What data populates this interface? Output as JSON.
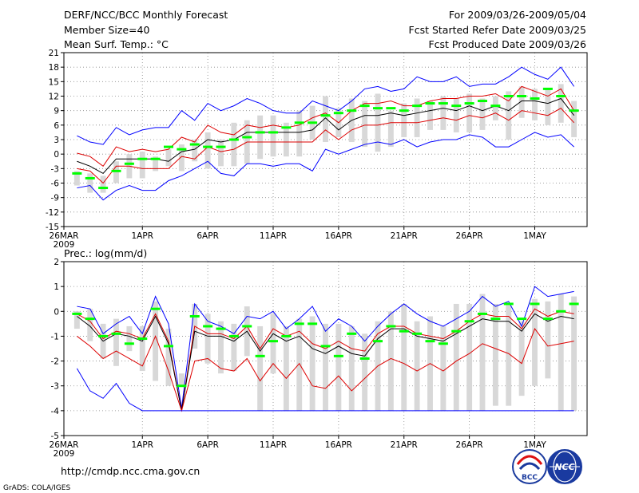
{
  "header": {
    "title": "DERF/NCC/BCC Monthly Forecast",
    "member_size": "Member Size=40",
    "variable": "Mean Surf. Temp.: °C",
    "period": "For 2009/03/26-2009/05/04",
    "start_date": "Fcst Started Refer Date 2009/03/25",
    "produced_date": "Fcst Produced Date 2009/03/26"
  },
  "footer": {
    "url": "http://cmdp.ncc.cma.gov.cn",
    "credit": "GrADS: COLA/IGES",
    "logo_bcc": "BCC",
    "logo_ncc": "NCC"
  },
  "colors": {
    "envelope": "#0000ff",
    "spread": "#dd0000",
    "mean": "#000000",
    "bar": "#d8d8d8",
    "marker": "#00ff00",
    "grid": "#888888"
  },
  "chart_data": [
    {
      "type": "line",
      "title": "Mean Surf. Temp.: °C",
      "x_labels": [
        "26MAR",
        "1APR",
        "6APR",
        "11APR",
        "16APR",
        "21APR",
        "26APR",
        "1MAY"
      ],
      "x_year_label": "2009",
      "x_label_days": [
        0,
        6,
        11,
        16,
        21,
        26,
        31,
        36
      ],
      "x_range": [
        0,
        40
      ],
      "ylim": [
        -15,
        21
      ],
      "yticks": [
        "21",
        "18",
        "15",
        "12",
        "9",
        "6",
        "3",
        "0",
        "-3",
        "-6",
        "-9",
        "-12",
        "-15"
      ],
      "grid": true,
      "days": [
        1,
        2,
        3,
        4,
        5,
        6,
        7,
        8,
        9,
        10,
        11,
        12,
        13,
        14,
        15,
        16,
        17,
        18,
        19,
        20,
        21,
        22,
        23,
        24,
        25,
        26,
        27,
        28,
        29,
        30,
        31,
        32,
        33,
        34,
        35,
        36,
        37,
        38,
        39
      ],
      "series": [
        {
          "name": "max",
          "values": [
            3.8,
            2.5,
            2.0,
            5.5,
            4.0,
            5.0,
            5.5,
            5.5,
            9.0,
            7.0,
            10.5,
            9.0,
            10.0,
            11.5,
            10.5,
            9.0,
            8.5,
            8.5,
            11.0,
            10.0,
            9.0,
            11.0,
            13.5,
            14.0,
            13.0,
            13.5,
            16.0,
            15.0,
            15.0,
            16.0,
            14.0,
            14.5,
            14.5,
            16.0,
            18.0,
            16.5,
            15.5,
            18.0,
            14.0
          ]
        },
        {
          "name": "upper",
          "values": [
            0.2,
            -0.5,
            -2.5,
            1.5,
            0.5,
            1.0,
            0.5,
            1.0,
            3.5,
            2.5,
            6.0,
            4.5,
            4.0,
            6.0,
            5.5,
            6.0,
            5.5,
            6.0,
            7.5,
            8.5,
            6.5,
            9.0,
            10.5,
            10.5,
            11.0,
            10.0,
            10.0,
            11.0,
            11.5,
            11.5,
            12.0,
            12.0,
            12.5,
            11.0,
            14.0,
            13.0,
            12.0,
            13.5,
            9.0
          ]
        },
        {
          "name": "mean",
          "values": [
            -1.5,
            -2.5,
            -4.0,
            -1.0,
            -1.0,
            -1.0,
            -1.0,
            -1.5,
            0.5,
            1.0,
            3.0,
            2.5,
            3.0,
            4.5,
            4.5,
            4.5,
            4.5,
            4.5,
            5.0,
            7.5,
            5.0,
            7.0,
            8.0,
            8.0,
            8.5,
            8.0,
            8.5,
            9.0,
            9.5,
            9.0,
            10.0,
            9.0,
            10.0,
            9.0,
            11.0,
            11.0,
            10.5,
            11.5,
            8.0
          ]
        },
        {
          "name": "lower",
          "values": [
            -3.0,
            -3.5,
            -6.0,
            -2.5,
            -2.5,
            -3.0,
            -3.0,
            -3.0,
            -0.5,
            -1.0,
            1.5,
            0.5,
            1.0,
            2.5,
            2.5,
            2.5,
            2.5,
            2.5,
            2.5,
            5.0,
            3.0,
            5.0,
            6.0,
            6.0,
            6.5,
            6.5,
            6.5,
            7.0,
            7.5,
            7.0,
            8.0,
            7.5,
            8.5,
            7.0,
            9.0,
            8.5,
            8.0,
            9.5,
            6.5
          ]
        },
        {
          "name": "min",
          "values": [
            -7.0,
            -6.5,
            -9.5,
            -7.5,
            -6.5,
            -7.5,
            -7.5,
            -5.5,
            -4.5,
            -3.0,
            -1.5,
            -4.0,
            -4.5,
            -2.0,
            -2.0,
            -2.5,
            -2.0,
            -2.0,
            -3.5,
            1.0,
            0.0,
            1.0,
            2.0,
            2.5,
            2.0,
            3.0,
            1.5,
            2.5,
            3.0,
            3.0,
            4.0,
            3.5,
            1.5,
            1.5,
            3.0,
            4.5,
            3.5,
            4.0,
            1.5
          ]
        }
      ],
      "bars": {
        "name": "observed range",
        "low": [
          -6.5,
          -8.0,
          -8.0,
          -6.0,
          -5.0,
          -5.0,
          -3.5,
          -2.5,
          -3.5,
          -1.5,
          -3.0,
          -2.5,
          -2.5,
          -2.0,
          -1.0,
          -0.5,
          -0.5,
          -0.5,
          3.0,
          2.5,
          3.5,
          2.5,
          1.5,
          0.5,
          1.5,
          3.5,
          3.5,
          5.0,
          5.0,
          4.5,
          4.5,
          5.0,
          7.0,
          3.0,
          7.5,
          7.0,
          6.0,
          6.5,
          3.5
        ],
        "high": [
          -3.5,
          -4.0,
          -4.5,
          -1.5,
          0.0,
          0.5,
          -0.5,
          1.0,
          2.0,
          3.0,
          4.5,
          3.0,
          6.5,
          7.0,
          8.0,
          8.0,
          6.5,
          9.0,
          10.0,
          12.0,
          9.5,
          11.5,
          11.0,
          12.5,
          9.0,
          10.5,
          11.5,
          11.0,
          12.0,
          11.5,
          12.5,
          11.5,
          12.0,
          13.0,
          14.0,
          13.5,
          13.5,
          14.5,
          11.0
        ]
      },
      "markers": {
        "name": "climatology",
        "values": [
          -4.0,
          -5.0,
          -7.0,
          -3.5,
          -2.0,
          -1.0,
          -1.0,
          1.5,
          1.0,
          2.0,
          1.5,
          1.5,
          3.0,
          3.5,
          4.5,
          4.5,
          5.5,
          6.5,
          6.5,
          8.0,
          8.5,
          9.0,
          10.0,
          9.5,
          9.5,
          9.0,
          10.0,
          10.5,
          10.5,
          10.0,
          10.5,
          11.0,
          10.0,
          12.0,
          12.0,
          11.5,
          13.5,
          12.0,
          9.0
        ]
      }
    },
    {
      "type": "line",
      "title": "Prec.: log(mm/d)",
      "x_labels": [
        "26MAR",
        "1APR",
        "6APR",
        "11APR",
        "16APR",
        "21APR",
        "26APR",
        "1MAY"
      ],
      "x_year_label": "2009",
      "x_label_days": [
        0,
        6,
        11,
        16,
        21,
        26,
        31,
        36
      ],
      "x_range": [
        0,
        40
      ],
      "ylim": [
        -5,
        2
      ],
      "yticks": [
        "2",
        "1",
        "0",
        "-1",
        "-2",
        "-3",
        "-4",
        "-5"
      ],
      "grid": true,
      "days": [
        1,
        2,
        3,
        4,
        5,
        6,
        7,
        8,
        9,
        10,
        11,
        12,
        13,
        14,
        15,
        16,
        17,
        18,
        19,
        20,
        21,
        22,
        23,
        24,
        25,
        26,
        27,
        28,
        29,
        30,
        31,
        32,
        33,
        34,
        35,
        36,
        37,
        38,
        39
      ],
      "series": [
        {
          "name": "max",
          "values": [
            0.2,
            0.1,
            -0.9,
            -0.5,
            -0.2,
            -0.9,
            0.6,
            -0.5,
            -3.9,
            0.3,
            -0.4,
            -0.6,
            -0.9,
            -0.2,
            -0.3,
            0.0,
            -0.7,
            -0.3,
            0.2,
            -0.8,
            -0.3,
            -0.6,
            -1.2,
            -0.6,
            -0.1,
            0.3,
            -0.1,
            -0.4,
            -0.6,
            -0.3,
            0.0,
            0.6,
            0.2,
            0.4,
            -0.6,
            1.0,
            0.6,
            0.7,
            0.8
          ]
        },
        {
          "name": "upper",
          "values": [
            -0.1,
            -0.4,
            -1.1,
            -0.8,
            -0.9,
            -1.1,
            -0.1,
            -1.2,
            -4.0,
            -0.6,
            -0.9,
            -0.9,
            -1.1,
            -0.6,
            -1.5,
            -0.7,
            -1.0,
            -0.8,
            -1.3,
            -1.5,
            -1.2,
            -1.5,
            -1.6,
            -0.9,
            -0.6,
            -0.6,
            -0.9,
            -1.0,
            -1.1,
            -0.8,
            -0.4,
            -0.1,
            -0.2,
            -0.2,
            -0.7,
            0.1,
            -0.2,
            0.0,
            -0.1
          ]
        },
        {
          "name": "mean",
          "values": [
            -0.2,
            -0.6,
            -1.2,
            -0.9,
            -1.0,
            -1.2,
            -0.2,
            -1.3,
            -4.0,
            -0.8,
            -1.0,
            -1.0,
            -1.2,
            -0.8,
            -1.6,
            -0.9,
            -1.2,
            -1.0,
            -1.5,
            -1.7,
            -1.4,
            -1.7,
            -1.8,
            -1.1,
            -0.7,
            -0.7,
            -1.0,
            -1.1,
            -1.2,
            -0.9,
            -0.6,
            -0.3,
            -0.4,
            -0.4,
            -0.8,
            -0.1,
            -0.4,
            -0.2,
            -0.3
          ]
        },
        {
          "name": "lower",
          "values": [
            -1.0,
            -1.4,
            -1.9,
            -1.6,
            -1.9,
            -2.2,
            -1.0,
            -2.4,
            -4.0,
            -2.0,
            -1.9,
            -2.3,
            -2.4,
            -1.9,
            -2.8,
            -2.1,
            -2.7,
            -2.1,
            -3.0,
            -3.1,
            -2.6,
            -3.2,
            -2.7,
            -2.2,
            -1.9,
            -2.1,
            -2.4,
            -2.1,
            -2.4,
            -2.0,
            -1.7,
            -1.3,
            -1.5,
            -1.7,
            -2.1,
            -0.7,
            -1.4,
            -1.3,
            -1.2
          ]
        },
        {
          "name": "min",
          "values": [
            -2.3,
            -3.2,
            -3.5,
            -2.9,
            -3.7,
            -4.0,
            -4.0,
            -4.0,
            -4.0,
            -4.0,
            -4.0,
            -4.0,
            -4.0,
            -4.0,
            -4.0,
            -4.0,
            -4.0,
            -4.0,
            -4.0,
            -4.0,
            -4.0,
            -4.0,
            -4.0,
            -4.0,
            -4.0,
            -4.0,
            -4.0,
            -4.0,
            -4.0,
            -4.0,
            -4.0,
            -4.0,
            -4.0,
            -4.0,
            -4.0,
            -4.0,
            -4.0,
            -4.0,
            -4.0
          ]
        }
      ],
      "bars": {
        "name": "observed range",
        "low": [
          -0.7,
          -1.2,
          -1.9,
          -2.2,
          -1.6,
          -2.4,
          -2.8,
          -3.0,
          -3.0,
          -1.5,
          -2.1,
          -2.5,
          -2.4,
          -1.8,
          -4.0,
          -2.5,
          -4.0,
          -4.0,
          -4.0,
          -4.0,
          -4.0,
          -4.0,
          -4.0,
          -4.0,
          -4.0,
          -4.0,
          -4.0,
          -4.0,
          -4.0,
          -4.0,
          -4.0,
          -4.0,
          -3.8,
          -3.8,
          -3.4,
          -3.0,
          -2.7,
          -4.0,
          -4.0
        ],
        "high": [
          0.0,
          0.1,
          -0.5,
          -0.3,
          -0.6,
          -0.6,
          0.4,
          -0.7,
          -2.5,
          0.3,
          -0.1,
          -0.4,
          -0.5,
          0.2,
          -0.6,
          -0.1,
          -0.6,
          -0.3,
          -0.2,
          -0.5,
          -0.5,
          -0.6,
          -0.9,
          -0.4,
          0.0,
          0.3,
          -0.4,
          -0.2,
          -0.6,
          0.3,
          0.3,
          0.7,
          0.3,
          0.3,
          -0.4,
          0.5,
          0.4,
          0.7,
          0.6
        ]
      },
      "markers": {
        "name": "climatology",
        "values": [
          -0.1,
          -0.3,
          -1.0,
          -0.9,
          -1.3,
          -1.1,
          0.1,
          -1.4,
          -3.0,
          -0.2,
          -0.6,
          -0.7,
          -1.0,
          -0.6,
          -1.8,
          -1.2,
          -1.0,
          -0.5,
          -0.5,
          -1.4,
          -1.8,
          -0.9,
          -1.9,
          -1.2,
          -0.6,
          -0.8,
          -0.9,
          -1.2,
          -1.3,
          -0.8,
          -0.4,
          -0.1,
          -0.3,
          0.3,
          -0.3,
          0.3,
          -0.3,
          0.0,
          0.3
        ]
      }
    }
  ]
}
